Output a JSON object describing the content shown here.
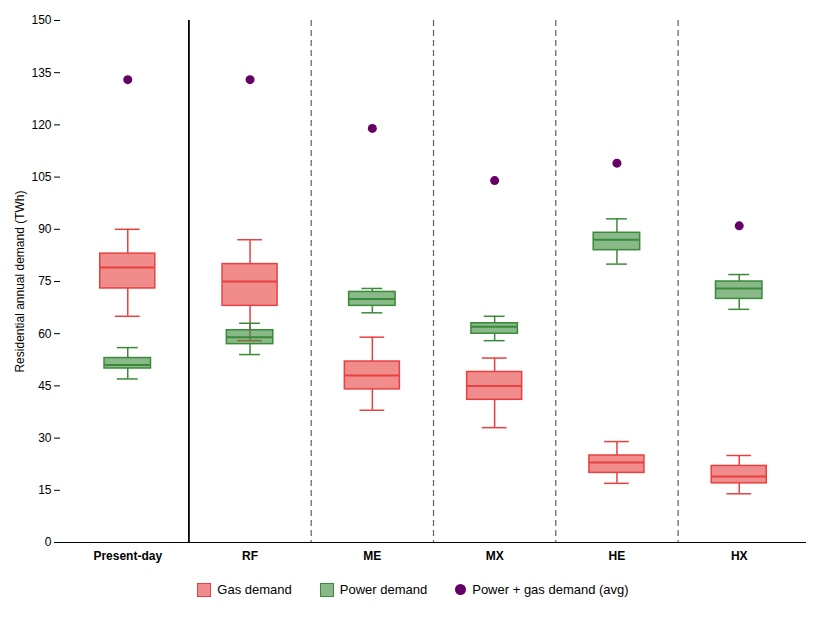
{
  "chart_data": {
    "type": "box",
    "ylabel": "Residential annual demand (TWh)",
    "categories": [
      "Present-day",
      "RF",
      "ME",
      "MX",
      "HE",
      "HX"
    ],
    "ylim": [
      0,
      150
    ],
    "yticks": [
      0,
      15,
      30,
      45,
      60,
      75,
      90,
      105,
      120,
      135,
      150
    ],
    "legend": "bottom",
    "series": [
      {
        "name": "Gas demand",
        "type": "box",
        "color": "#e84040",
        "values": [
          {
            "q1": 73,
            "median": 79,
            "q3": 83,
            "whislo": 65,
            "whishi": 90
          },
          {
            "q1": 68,
            "median": 75,
            "q3": 80,
            "whislo": 58,
            "whishi": 87
          },
          {
            "q1": 44,
            "median": 48,
            "q3": 52,
            "whislo": 38,
            "whishi": 59
          },
          {
            "q1": 41,
            "median": 45,
            "q3": 49,
            "whislo": 33,
            "whishi": 53
          },
          {
            "q1": 20,
            "median": 23,
            "q3": 25,
            "whislo": 17,
            "whishi": 29
          },
          {
            "q1": 17,
            "median": 19,
            "q3": 22,
            "whislo": 14,
            "whishi": 25
          }
        ]
      },
      {
        "name": "Power demand",
        "type": "box",
        "color": "#3a8a3a",
        "values": [
          {
            "q1": 50,
            "median": 51,
            "q3": 53,
            "whislo": 47,
            "whishi": 56
          },
          {
            "q1": 57,
            "median": 59,
            "q3": 61,
            "whislo": 54,
            "whishi": 63
          },
          {
            "q1": 68,
            "median": 70,
            "q3": 72,
            "whislo": 66,
            "whishi": 73
          },
          {
            "q1": 60,
            "median": 62,
            "q3": 63,
            "whislo": 58,
            "whishi": 65
          },
          {
            "q1": 84,
            "median": 87,
            "q3": 89,
            "whislo": 80,
            "whishi": 93
          },
          {
            "q1": 70,
            "median": 73,
            "q3": 75,
            "whislo": 67,
            "whishi": 77
          }
        ]
      },
      {
        "name": "Power + gas demand (avg)",
        "type": "scatter",
        "marker": "o",
        "color": "#660066",
        "values": [
          133,
          133,
          119,
          104,
          109,
          91
        ]
      }
    ]
  }
}
